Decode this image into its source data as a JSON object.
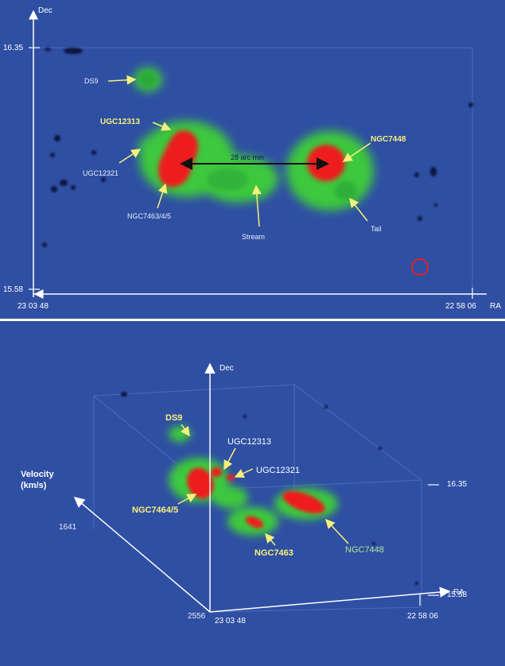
{
  "top": {
    "axis": {
      "y_label": "Dec",
      "x_label": "RA",
      "y_top": "16.35",
      "y_bottom": "15.58",
      "x_left": "23 03 48",
      "x_right": "22 58 06"
    },
    "labels": {
      "ds9": "DS9",
      "ugc12313": "UGC12313",
      "ugc12321": "UGC12321",
      "ngc7463_4_5": "NGC7463/4/5",
      "stream": "Stream",
      "ngc7448": "NGC7448",
      "tail": "Tail",
      "distance": "28 arc min"
    }
  },
  "bottom": {
    "axis": {
      "dec": "Dec",
      "ra": "RA",
      "velocity_line1": "Velocity",
      "velocity_line2": "(km/s)",
      "v_top": "1641",
      "v_bottom": "2556",
      "dec_top": "16.35",
      "dec_bottom": "15.58",
      "ra_left": "23 03 48",
      "ra_right": "22 58 06"
    },
    "labels": {
      "ds9": "DS9",
      "ugc12313": "UGC12313",
      "ugc12321": "UGC12321",
      "ngc7464_5": "NGC7464/5",
      "ngc7463": "NGC7463",
      "ngc7448": "NGC7448"
    }
  },
  "colors": {
    "background": "#2f4fa3",
    "emission_high": "#ee1c1c",
    "emission_mid": "#3cc83c",
    "label_yellow": "#f6f07a",
    "label_green": "#a8e890"
  }
}
